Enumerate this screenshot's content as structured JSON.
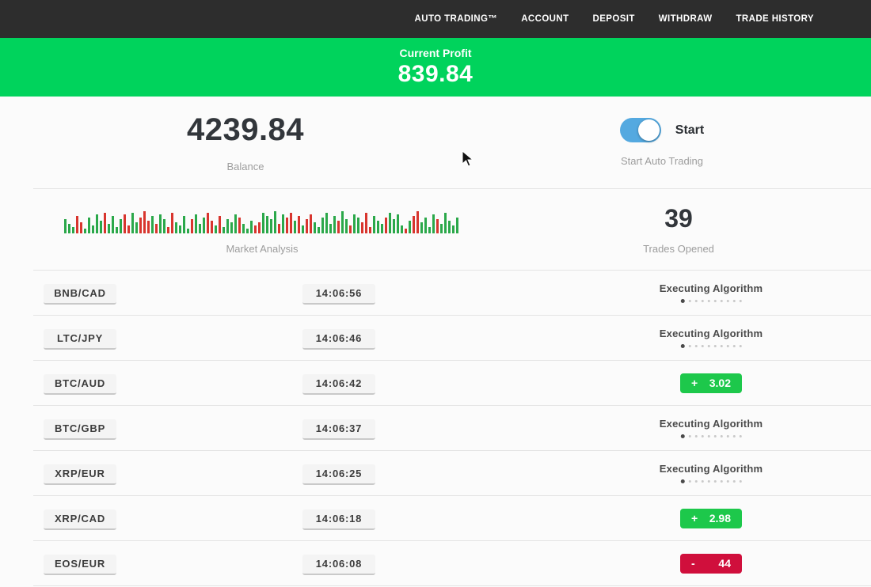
{
  "navbar": {
    "items": [
      "AUTO TRADING™",
      "ACCOUNT",
      "DEPOSIT",
      "WITHDRAW",
      "TRADE HISTORY"
    ]
  },
  "profit_banner": {
    "label": "Current Profit",
    "value": "839.84"
  },
  "stats": {
    "balance": {
      "value": "4239.84",
      "label": "Balance"
    },
    "auto_trading": {
      "toggle_label": "Start",
      "label": "Start Auto Trading",
      "enabled": true
    },
    "market_analysis": {
      "label": "Market Analysis"
    },
    "trades_opened": {
      "value": "39",
      "label": "Trades Opened"
    }
  },
  "chart_data": {
    "type": "bar",
    "title": "Market Analysis",
    "ylabel": "",
    "xlabel": "",
    "legend": false,
    "note": "decorative candle-style volume bars, bottom-aligned, heights in px, g=up green r=down red",
    "bars": [
      [
        18,
        "g"
      ],
      [
        12,
        "g"
      ],
      [
        8,
        "g"
      ],
      [
        22,
        "r"
      ],
      [
        14,
        "r"
      ],
      [
        6,
        "g"
      ],
      [
        20,
        "g"
      ],
      [
        10,
        "g"
      ],
      [
        24,
        "g"
      ],
      [
        16,
        "g"
      ],
      [
        26,
        "r"
      ],
      [
        12,
        "g"
      ],
      [
        22,
        "g"
      ],
      [
        8,
        "g"
      ],
      [
        18,
        "g"
      ],
      [
        24,
        "r"
      ],
      [
        10,
        "r"
      ],
      [
        26,
        "g"
      ],
      [
        14,
        "g"
      ],
      [
        20,
        "r"
      ],
      [
        28,
        "r"
      ],
      [
        16,
        "r"
      ],
      [
        22,
        "g"
      ],
      [
        12,
        "r"
      ],
      [
        24,
        "g"
      ],
      [
        18,
        "g"
      ],
      [
        8,
        "r"
      ],
      [
        26,
        "r"
      ],
      [
        14,
        "g"
      ],
      [
        10,
        "g"
      ],
      [
        22,
        "g"
      ],
      [
        6,
        "g"
      ],
      [
        18,
        "r"
      ],
      [
        24,
        "g"
      ],
      [
        12,
        "g"
      ],
      [
        20,
        "g"
      ],
      [
        26,
        "r"
      ],
      [
        16,
        "r"
      ],
      [
        10,
        "g"
      ],
      [
        22,
        "r"
      ],
      [
        8,
        "g"
      ],
      [
        18,
        "g"
      ],
      [
        14,
        "g"
      ],
      [
        24,
        "g"
      ],
      [
        20,
        "r"
      ],
      [
        12,
        "g"
      ],
      [
        6,
        "g"
      ],
      [
        16,
        "g"
      ],
      [
        10,
        "r"
      ],
      [
        14,
        "r"
      ],
      [
        26,
        "g"
      ],
      [
        22,
        "g"
      ],
      [
        18,
        "g"
      ],
      [
        28,
        "g"
      ],
      [
        12,
        "r"
      ],
      [
        24,
        "g"
      ],
      [
        20,
        "r"
      ],
      [
        26,
        "r"
      ],
      [
        16,
        "g"
      ],
      [
        22,
        "r"
      ],
      [
        10,
        "g"
      ],
      [
        18,
        "r"
      ],
      [
        24,
        "r"
      ],
      [
        14,
        "g"
      ],
      [
        8,
        "g"
      ],
      [
        20,
        "g"
      ],
      [
        26,
        "g"
      ],
      [
        12,
        "g"
      ],
      [
        22,
        "g"
      ],
      [
        16,
        "r"
      ],
      [
        28,
        "g"
      ],
      [
        18,
        "g"
      ],
      [
        10,
        "r"
      ],
      [
        24,
        "g"
      ],
      [
        20,
        "g"
      ],
      [
        14,
        "r"
      ],
      [
        26,
        "r"
      ],
      [
        8,
        "r"
      ],
      [
        22,
        "g"
      ],
      [
        16,
        "g"
      ],
      [
        12,
        "g"
      ],
      [
        20,
        "r"
      ],
      [
        26,
        "g"
      ],
      [
        18,
        "g"
      ],
      [
        24,
        "g"
      ],
      [
        10,
        "g"
      ],
      [
        6,
        "r"
      ],
      [
        16,
        "g"
      ],
      [
        22,
        "r"
      ],
      [
        28,
        "r"
      ],
      [
        14,
        "g"
      ],
      [
        20,
        "g"
      ],
      [
        8,
        "g"
      ],
      [
        24,
        "g"
      ],
      [
        18,
        "r"
      ],
      [
        12,
        "g"
      ],
      [
        26,
        "g"
      ],
      [
        16,
        "g"
      ],
      [
        10,
        "g"
      ],
      [
        20,
        "g"
      ]
    ],
    "colors": {
      "up": "#2ba84a",
      "down": "#d8352e"
    }
  },
  "progress": {
    "dots_total": 10,
    "dots_active_index": 0
  },
  "trades": [
    {
      "pair": "BNB/CAD",
      "time": "14:06:56",
      "status": "executing",
      "status_label": "Executing Algorithm"
    },
    {
      "pair": "LTC/JPY",
      "time": "14:06:46",
      "status": "executing",
      "status_label": "Executing Algorithm"
    },
    {
      "pair": "BTC/AUD",
      "time": "14:06:42",
      "status": "profit",
      "sign": "+",
      "value": "3.02"
    },
    {
      "pair": "BTC/GBP",
      "time": "14:06:37",
      "status": "executing",
      "status_label": "Executing Algorithm"
    },
    {
      "pair": "XRP/EUR",
      "time": "14:06:25",
      "status": "executing",
      "status_label": "Executing Algorithm"
    },
    {
      "pair": "XRP/CAD",
      "time": "14:06:18",
      "status": "profit",
      "sign": "+",
      "value": "2.98"
    },
    {
      "pair": "EOS/EUR",
      "time": "14:06:08",
      "status": "loss",
      "sign": "-",
      "value": "44"
    }
  ],
  "colors": {
    "navbar_bg": "#2d2d2d",
    "banner_green": "#00d35c",
    "badge_green": "#1dc84b",
    "badge_red": "#d00f3c",
    "toggle_blue": "#54a9e0"
  }
}
